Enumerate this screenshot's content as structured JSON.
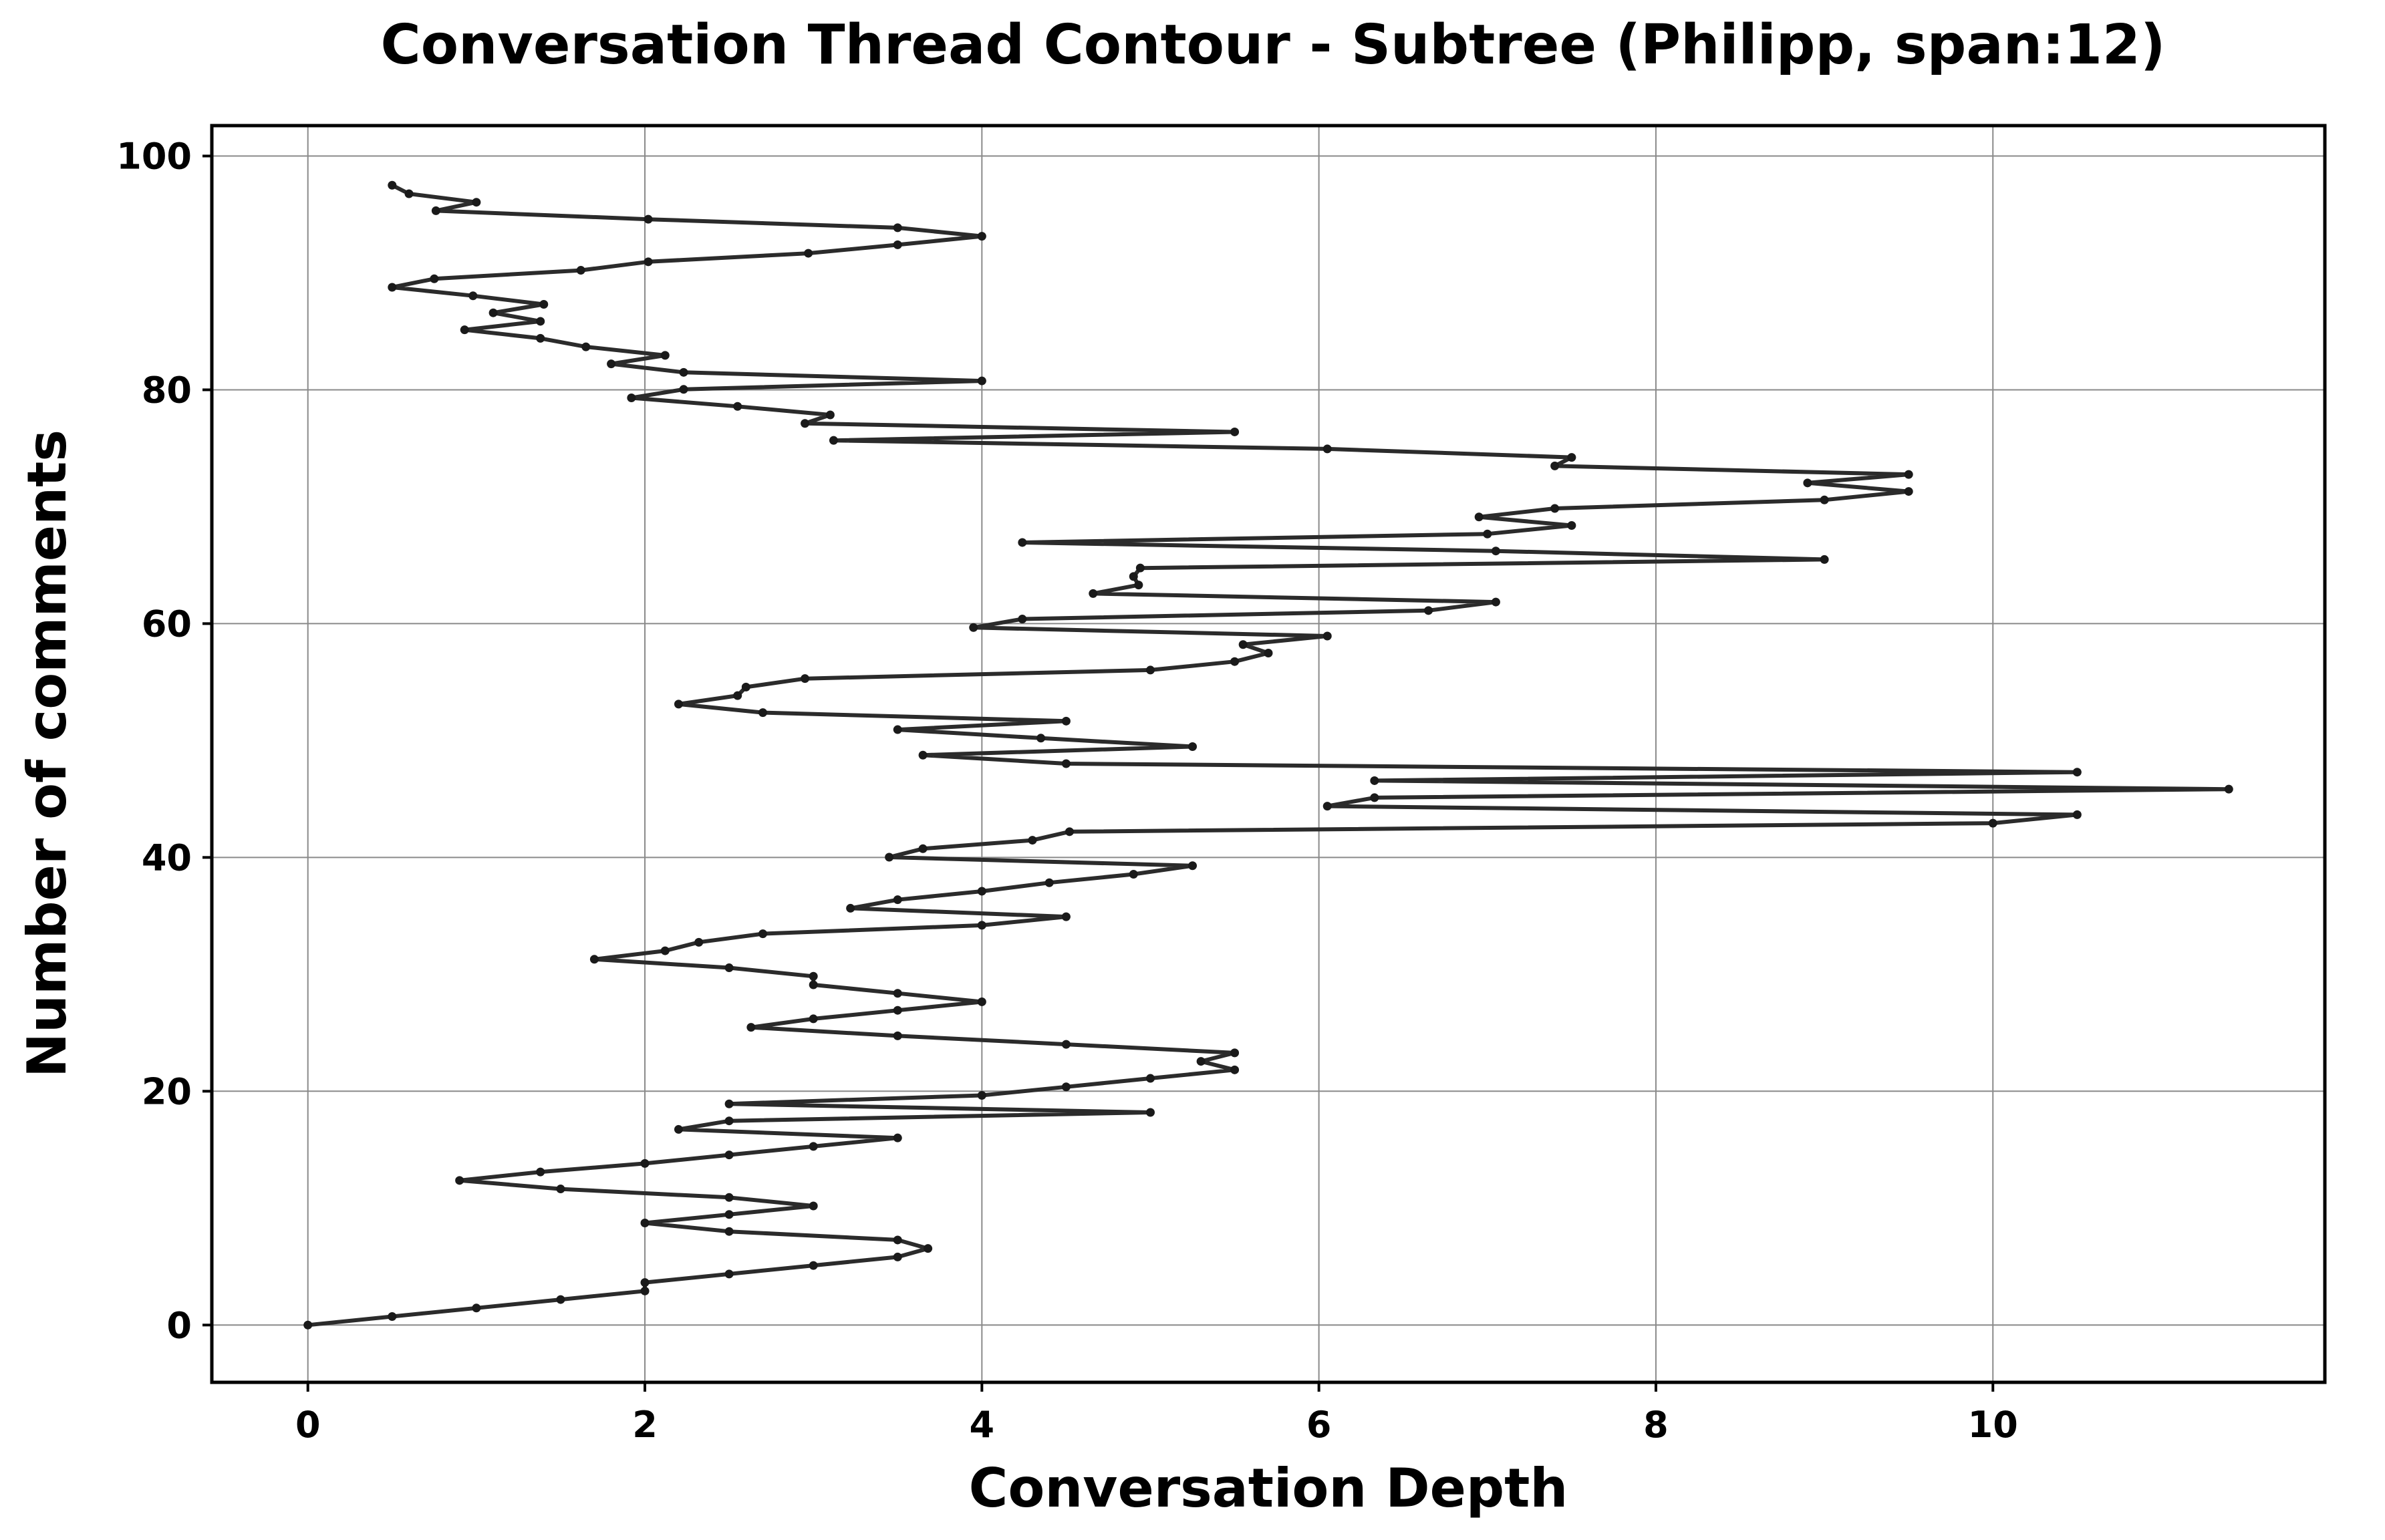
{
  "chart_data": {
    "type": "line",
    "title": "Conversation Thread Contour  - Subtree (Philipp, span:12)",
    "xlabel": "Conversation Depth",
    "ylabel": "Number of comments",
    "xlim": [
      -0.57,
      11.97
    ],
    "ylim": [
      -4.9,
      102.6
    ],
    "xticks": [
      0,
      2,
      4,
      6,
      8,
      10
    ],
    "yticks": [
      0,
      20,
      40,
      60,
      80,
      100
    ],
    "grid": true,
    "line_color": "#2b2b2b",
    "marker_color": "#1a1a1a",
    "series": [
      {
        "x": [
          0,
          0.5,
          1,
          1.5,
          2,
          2,
          2.5,
          3,
          3.5,
          3.68,
          3.5,
          2.5,
          2,
          2.5,
          3,
          2.5,
          1.5,
          0.9,
          1.38,
          2,
          2.5,
          3,
          3.5,
          2.2,
          2.5,
          5,
          2.5,
          4,
          4.5,
          5,
          5.5,
          5.3,
          5.5,
          4.5,
          3.5,
          2.63,
          3,
          3.5,
          4,
          3.5,
          3,
          3,
          2.5,
          1.7,
          2.12,
          2.32,
          2.7,
          4,
          4.5,
          3.22,
          3.5,
          4,
          4.4,
          4.9,
          5.25,
          3.45,
          3.65,
          4.3,
          4.52,
          10,
          10.5,
          6.05,
          6.33,
          11.4,
          6.33,
          10.5,
          4.5,
          3.65,
          5.25,
          4.35,
          3.5,
          4.5,
          2.7,
          2.2,
          2.55,
          2.6,
          2.95,
          5.0,
          5.5,
          5.7,
          5.55,
          6.05,
          3.95,
          4.24,
          6.65,
          7.05,
          4.66,
          4.93,
          4.9,
          4.94,
          9.0,
          7.05,
          4.24,
          7.0,
          7.5,
          6.95,
          7.4,
          9.0,
          9.5,
          8.9,
          9.5,
          7.4,
          7.5,
          6.05,
          3.12,
          5.5,
          2.95,
          3.1,
          2.55,
          1.92,
          2.23,
          4.0,
          2.23,
          1.8,
          2.12,
          1.65,
          1.38,
          0.93,
          1.38,
          1.1,
          1.4,
          0.98,
          0.5,
          0.75,
          1.62,
          2.02,
          2.97,
          3.5,
          4.0,
          3.5,
          2.02,
          0.76,
          1.0,
          0.6,
          0.5
        ]
      }
    ]
  }
}
